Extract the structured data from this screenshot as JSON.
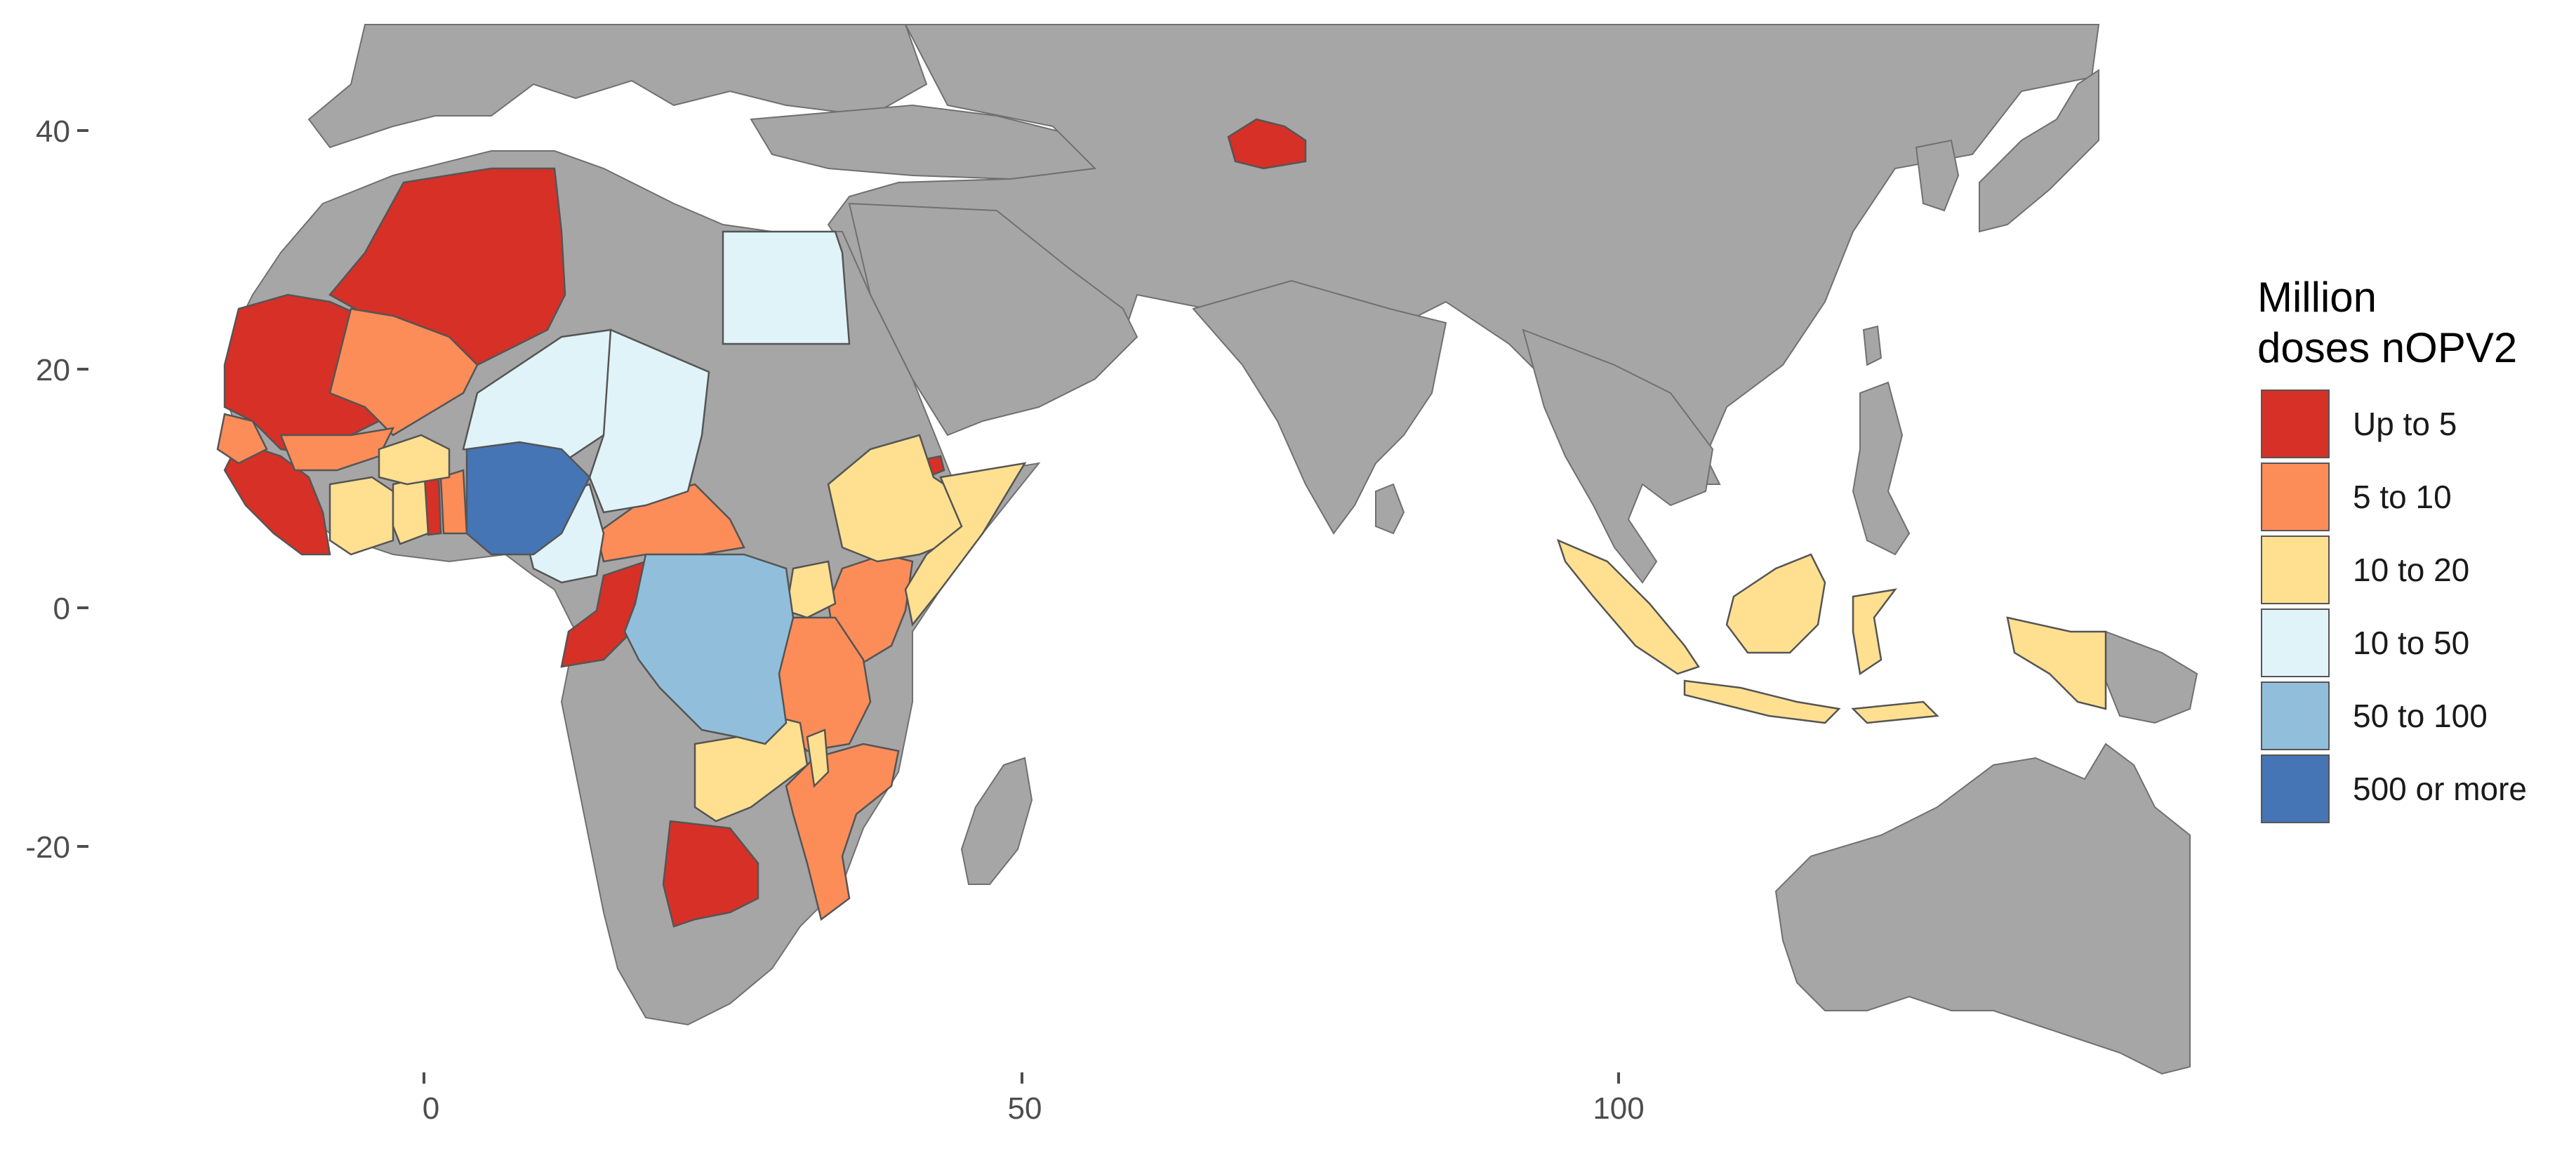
{
  "legend": {
    "title_line1": "Million",
    "title_line2": "doses nOPV2",
    "items": [
      {
        "label": "Up to 5",
        "color": "#d73027"
      },
      {
        "label": "5 to 10",
        "color": "#fc8d59"
      },
      {
        "label": "10 to 20",
        "color": "#fee090"
      },
      {
        "label": "10 to 50",
        "color": "#e0f3f8"
      },
      {
        "label": "50 to 100",
        "color": "#91bfdb"
      },
      {
        "label": "500 or more",
        "color": "#4575b4"
      }
    ]
  },
  "axes": {
    "y_ticks": [
      "40",
      "20",
      "0",
      "-20"
    ],
    "x_ticks": [
      "0",
      "50",
      "100"
    ]
  },
  "colors": {
    "land": "#a6a6a6",
    "border": "#707070",
    "sea": "#ffffff"
  }
}
